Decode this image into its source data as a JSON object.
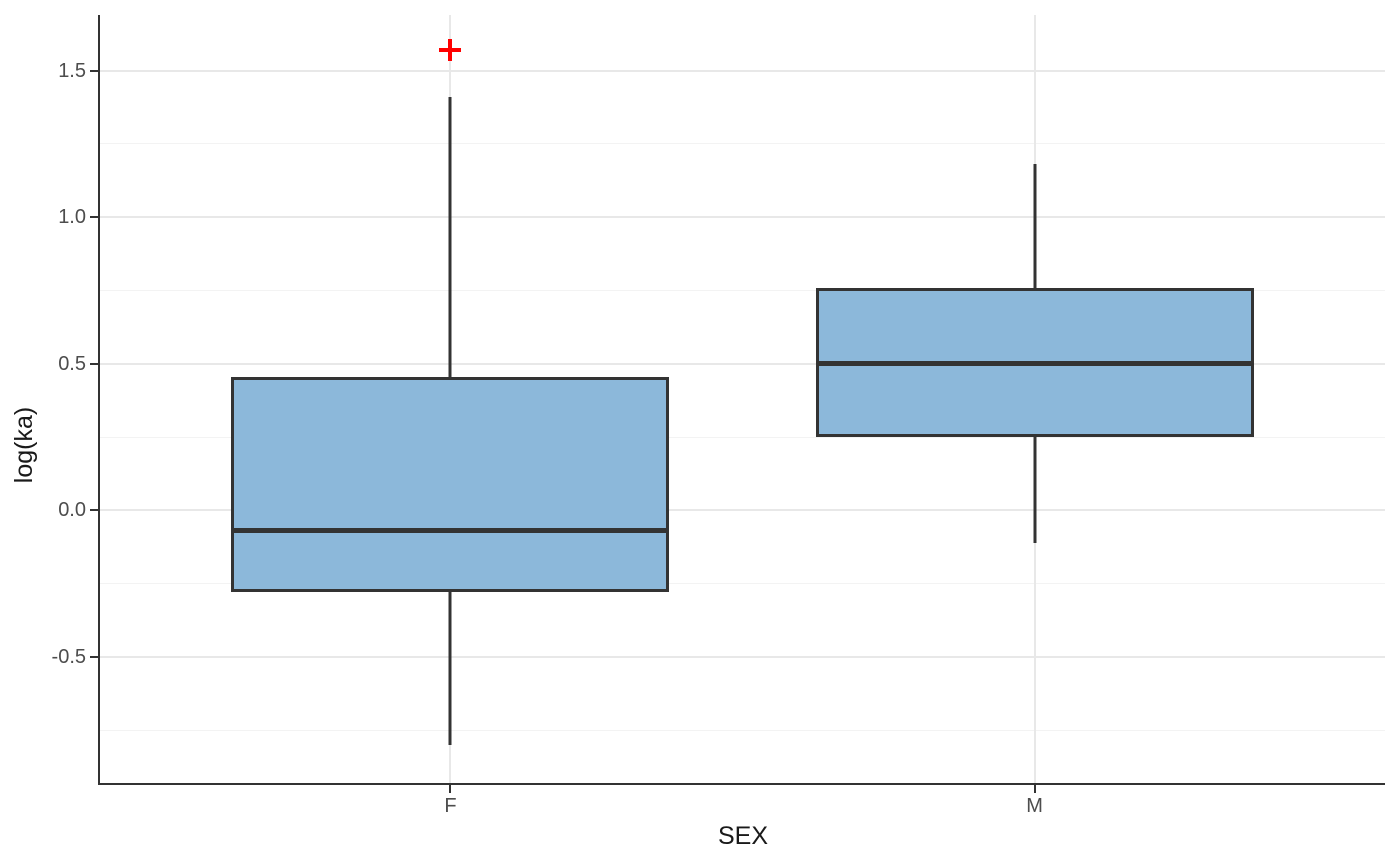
{
  "chart": {
    "xlabel": "SEX",
    "ylabel": "log(ka)"
  },
  "chart_data": {
    "type": "boxplot",
    "title": "",
    "xlabel": "SEX",
    "ylabel": "log(ka)",
    "categories": [
      "F",
      "M"
    ],
    "series": [
      {
        "name": "F",
        "lower_whisker": -0.8,
        "q1": -0.28,
        "median": -0.07,
        "q3": 0.455,
        "upper_whisker": 1.41,
        "outliers": [
          1.57
        ]
      },
      {
        "name": "M",
        "lower_whisker": -0.11,
        "q1": 0.25,
        "median": 0.5,
        "q3": 0.76,
        "upper_whisker": 1.18,
        "outliers": []
      }
    ],
    "y_axis": {
      "tick_labels": [
        "1.5",
        "1.0",
        "0.5",
        "0.0",
        "-0.5"
      ],
      "tick_values": [
        1.5,
        1.0,
        0.5,
        0.0,
        -0.5
      ],
      "minor_gridlines": [
        1.25,
        0.75,
        0.25,
        -0.25,
        -0.75
      ],
      "range": [
        -0.93,
        1.69
      ]
    },
    "x_axis": {
      "tick_labels": [
        "F",
        "M"
      ]
    },
    "legend": "none",
    "grid": "major and minor horizontal, major vertical at categories",
    "outlier_marker": "plus",
    "colors": {
      "box_fill": "#8cb8da",
      "box_stroke": "#333333",
      "median_stroke": "#333333",
      "whisker_stroke": "#333333",
      "outlier": "#ff0000",
      "grid_major": "#e8e8e8",
      "grid_minor": "#f3f3f3",
      "axis_line": "#333333",
      "tick_label": "#4d4d4d",
      "axis_title": "#1a1a1a",
      "background": "#ffffff"
    }
  }
}
